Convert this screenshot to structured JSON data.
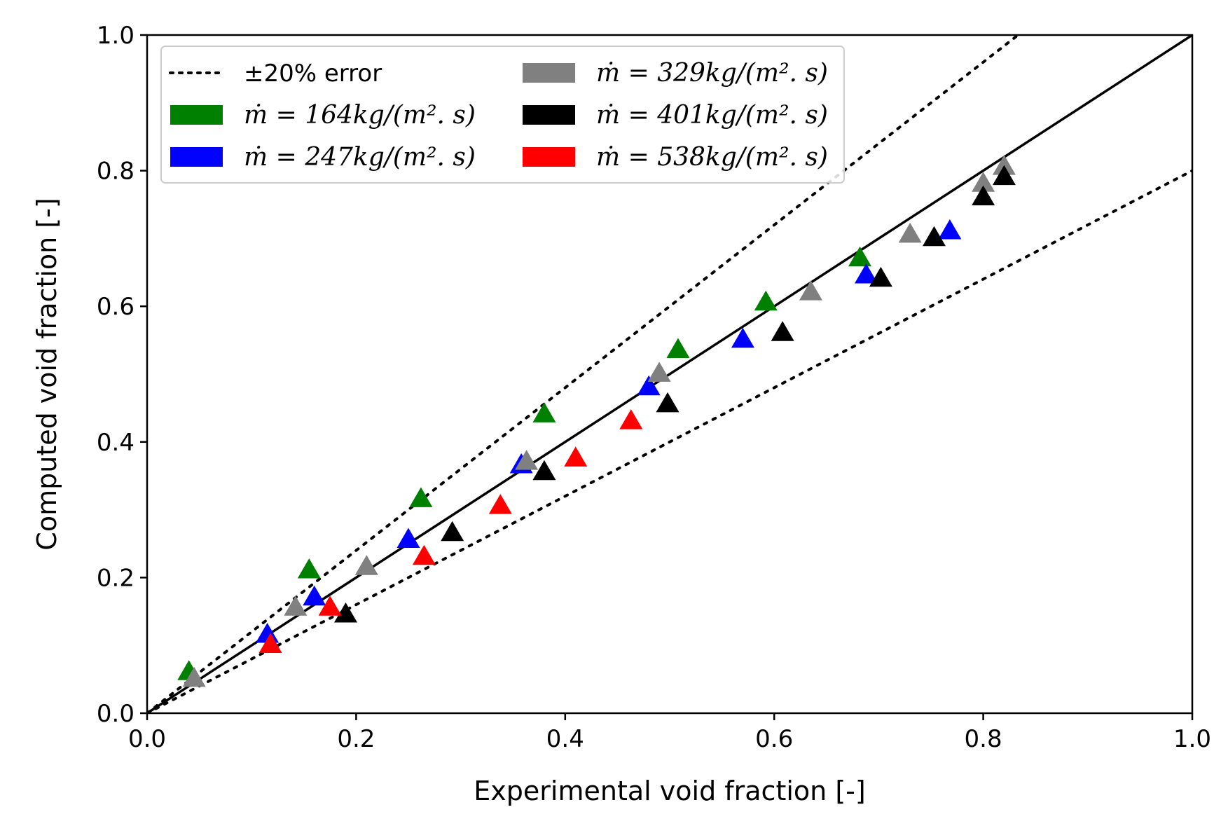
{
  "chart_data": {
    "type": "scatter",
    "title": "",
    "xlabel": "Experimental void fraction [-]",
    "ylabel": "Computed void fraction [-]",
    "xlim": [
      0.0,
      1.0
    ],
    "ylim": [
      0.0,
      1.0
    ],
    "xticks": [
      "0.0",
      "0.2",
      "0.4",
      "0.6",
      "0.8",
      "1.0"
    ],
    "yticks": [
      "0.0",
      "0.2",
      "0.4",
      "0.6",
      "0.8",
      "1.0"
    ],
    "grid": false,
    "legend_position": "top-left",
    "reference_lines": [
      {
        "name": "y = x",
        "style": "solid",
        "slope": 1.0
      },
      {
        "name": "±20% error",
        "style": "dotted",
        "slopes": [
          1.2,
          0.8
        ]
      }
    ],
    "error_band_label": "±20% error",
    "series": [
      {
        "name": "ṁ = 164kg/(m². s)",
        "color": "#008000",
        "marker": "triangle",
        "points": [
          [
            0.04,
            0.06
          ],
          [
            0.155,
            0.21
          ],
          [
            0.262,
            0.315
          ],
          [
            0.38,
            0.44
          ],
          [
            0.508,
            0.535
          ],
          [
            0.592,
            0.605
          ],
          [
            0.682,
            0.67
          ]
        ]
      },
      {
        "name": "ṁ = 247kg/(m². s)",
        "color": "#0000ff",
        "marker": "triangle",
        "points": [
          [
            0.115,
            0.115
          ],
          [
            0.16,
            0.17
          ],
          [
            0.25,
            0.255
          ],
          [
            0.358,
            0.365
          ],
          [
            0.48,
            0.48
          ],
          [
            0.57,
            0.55
          ],
          [
            0.688,
            0.645
          ],
          [
            0.768,
            0.71
          ]
        ]
      },
      {
        "name": "ṁ = 329kg/(m². s)",
        "color": "#808080",
        "marker": "triangle",
        "points": [
          [
            0.045,
            0.05
          ],
          [
            0.142,
            0.155
          ],
          [
            0.21,
            0.215
          ],
          [
            0.363,
            0.37
          ],
          [
            0.49,
            0.5
          ],
          [
            0.635,
            0.62
          ],
          [
            0.73,
            0.705
          ],
          [
            0.8,
            0.78
          ],
          [
            0.82,
            0.805
          ]
        ]
      },
      {
        "name": "ṁ = 401kg/(m². s)",
        "color": "#000000",
        "marker": "triangle",
        "points": [
          [
            0.19,
            0.145
          ],
          [
            0.292,
            0.265
          ],
          [
            0.38,
            0.355
          ],
          [
            0.498,
            0.455
          ],
          [
            0.608,
            0.56
          ],
          [
            0.702,
            0.64
          ],
          [
            0.753,
            0.7
          ],
          [
            0.8,
            0.76
          ],
          [
            0.82,
            0.79
          ]
        ]
      },
      {
        "name": "ṁ = 538kg/(m². s)",
        "color": "#ff0000",
        "marker": "triangle",
        "points": [
          [
            0.118,
            0.1
          ],
          [
            0.175,
            0.155
          ],
          [
            0.265,
            0.23
          ],
          [
            0.338,
            0.305
          ],
          [
            0.41,
            0.375
          ],
          [
            0.463,
            0.43
          ]
        ]
      }
    ]
  }
}
